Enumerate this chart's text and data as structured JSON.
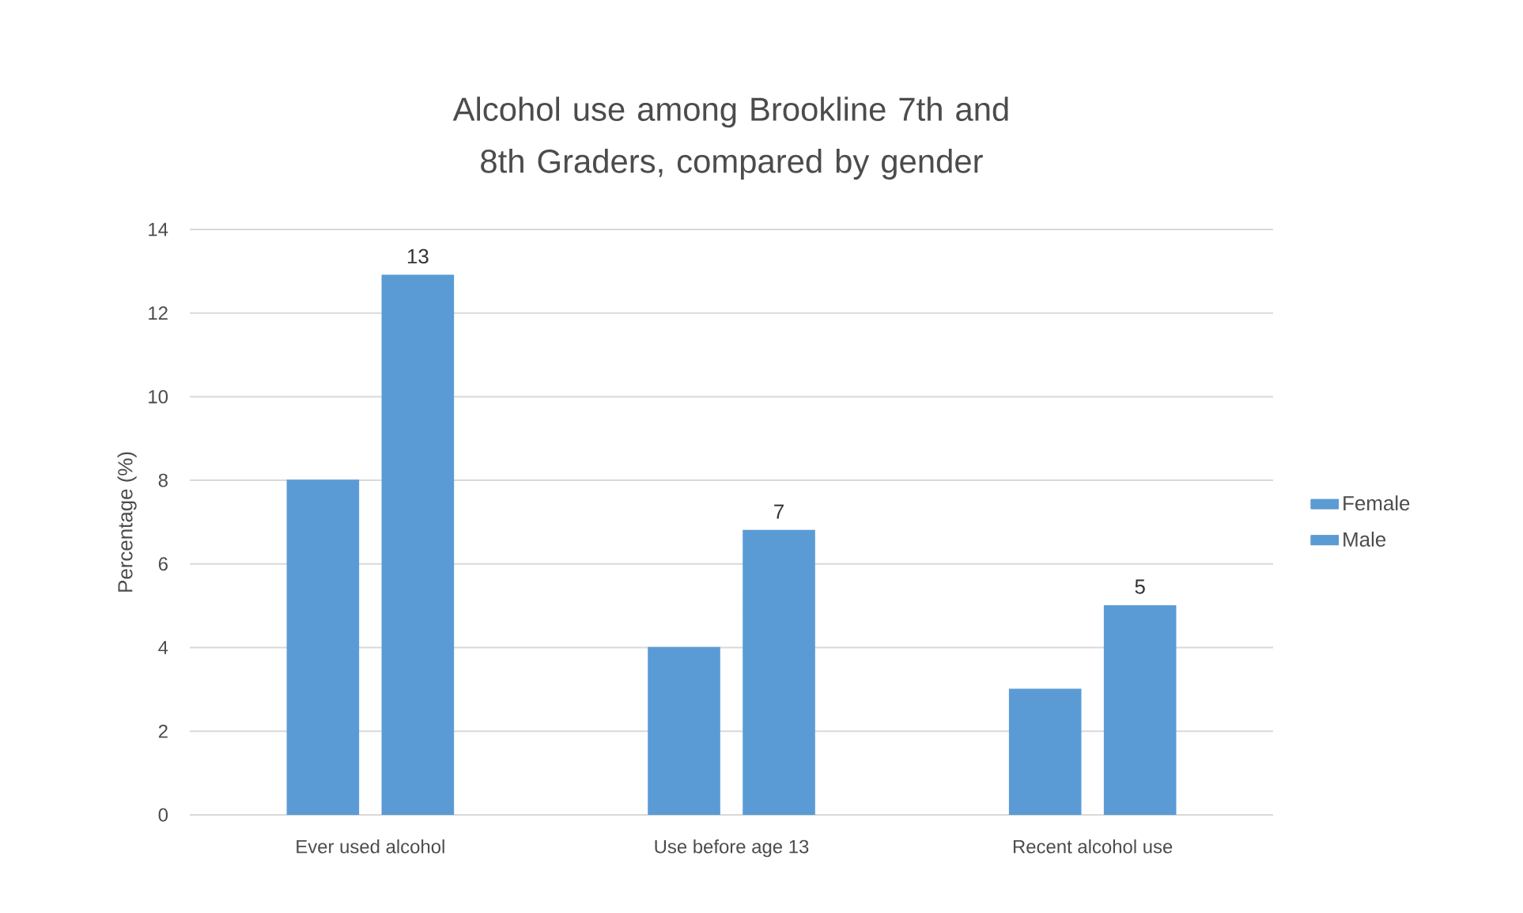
{
  "chart_data": {
    "type": "bar",
    "title": "Alcohol use among Brookline 7th and 8th Graders, compared by gender",
    "ylabel": "Percentage  (%)",
    "categories": [
      "Ever used alcohol",
      "Use before age 13",
      "Recent alcohol use"
    ],
    "series": [
      {
        "name": "Female",
        "color": "#5b9bd5",
        "values": [
          8,
          4,
          3
        ]
      },
      {
        "name": "Male",
        "color": "#5b9bd5",
        "values": [
          12.9,
          6.8,
          5
        ],
        "value_labels": [
          "13",
          "7",
          "5"
        ]
      }
    ],
    "ylim": [
      0,
      14
    ],
    "yticks": [
      0,
      2,
      4,
      6,
      8,
      10,
      12,
      14
    ],
    "grid": "y",
    "legend": "right"
  }
}
